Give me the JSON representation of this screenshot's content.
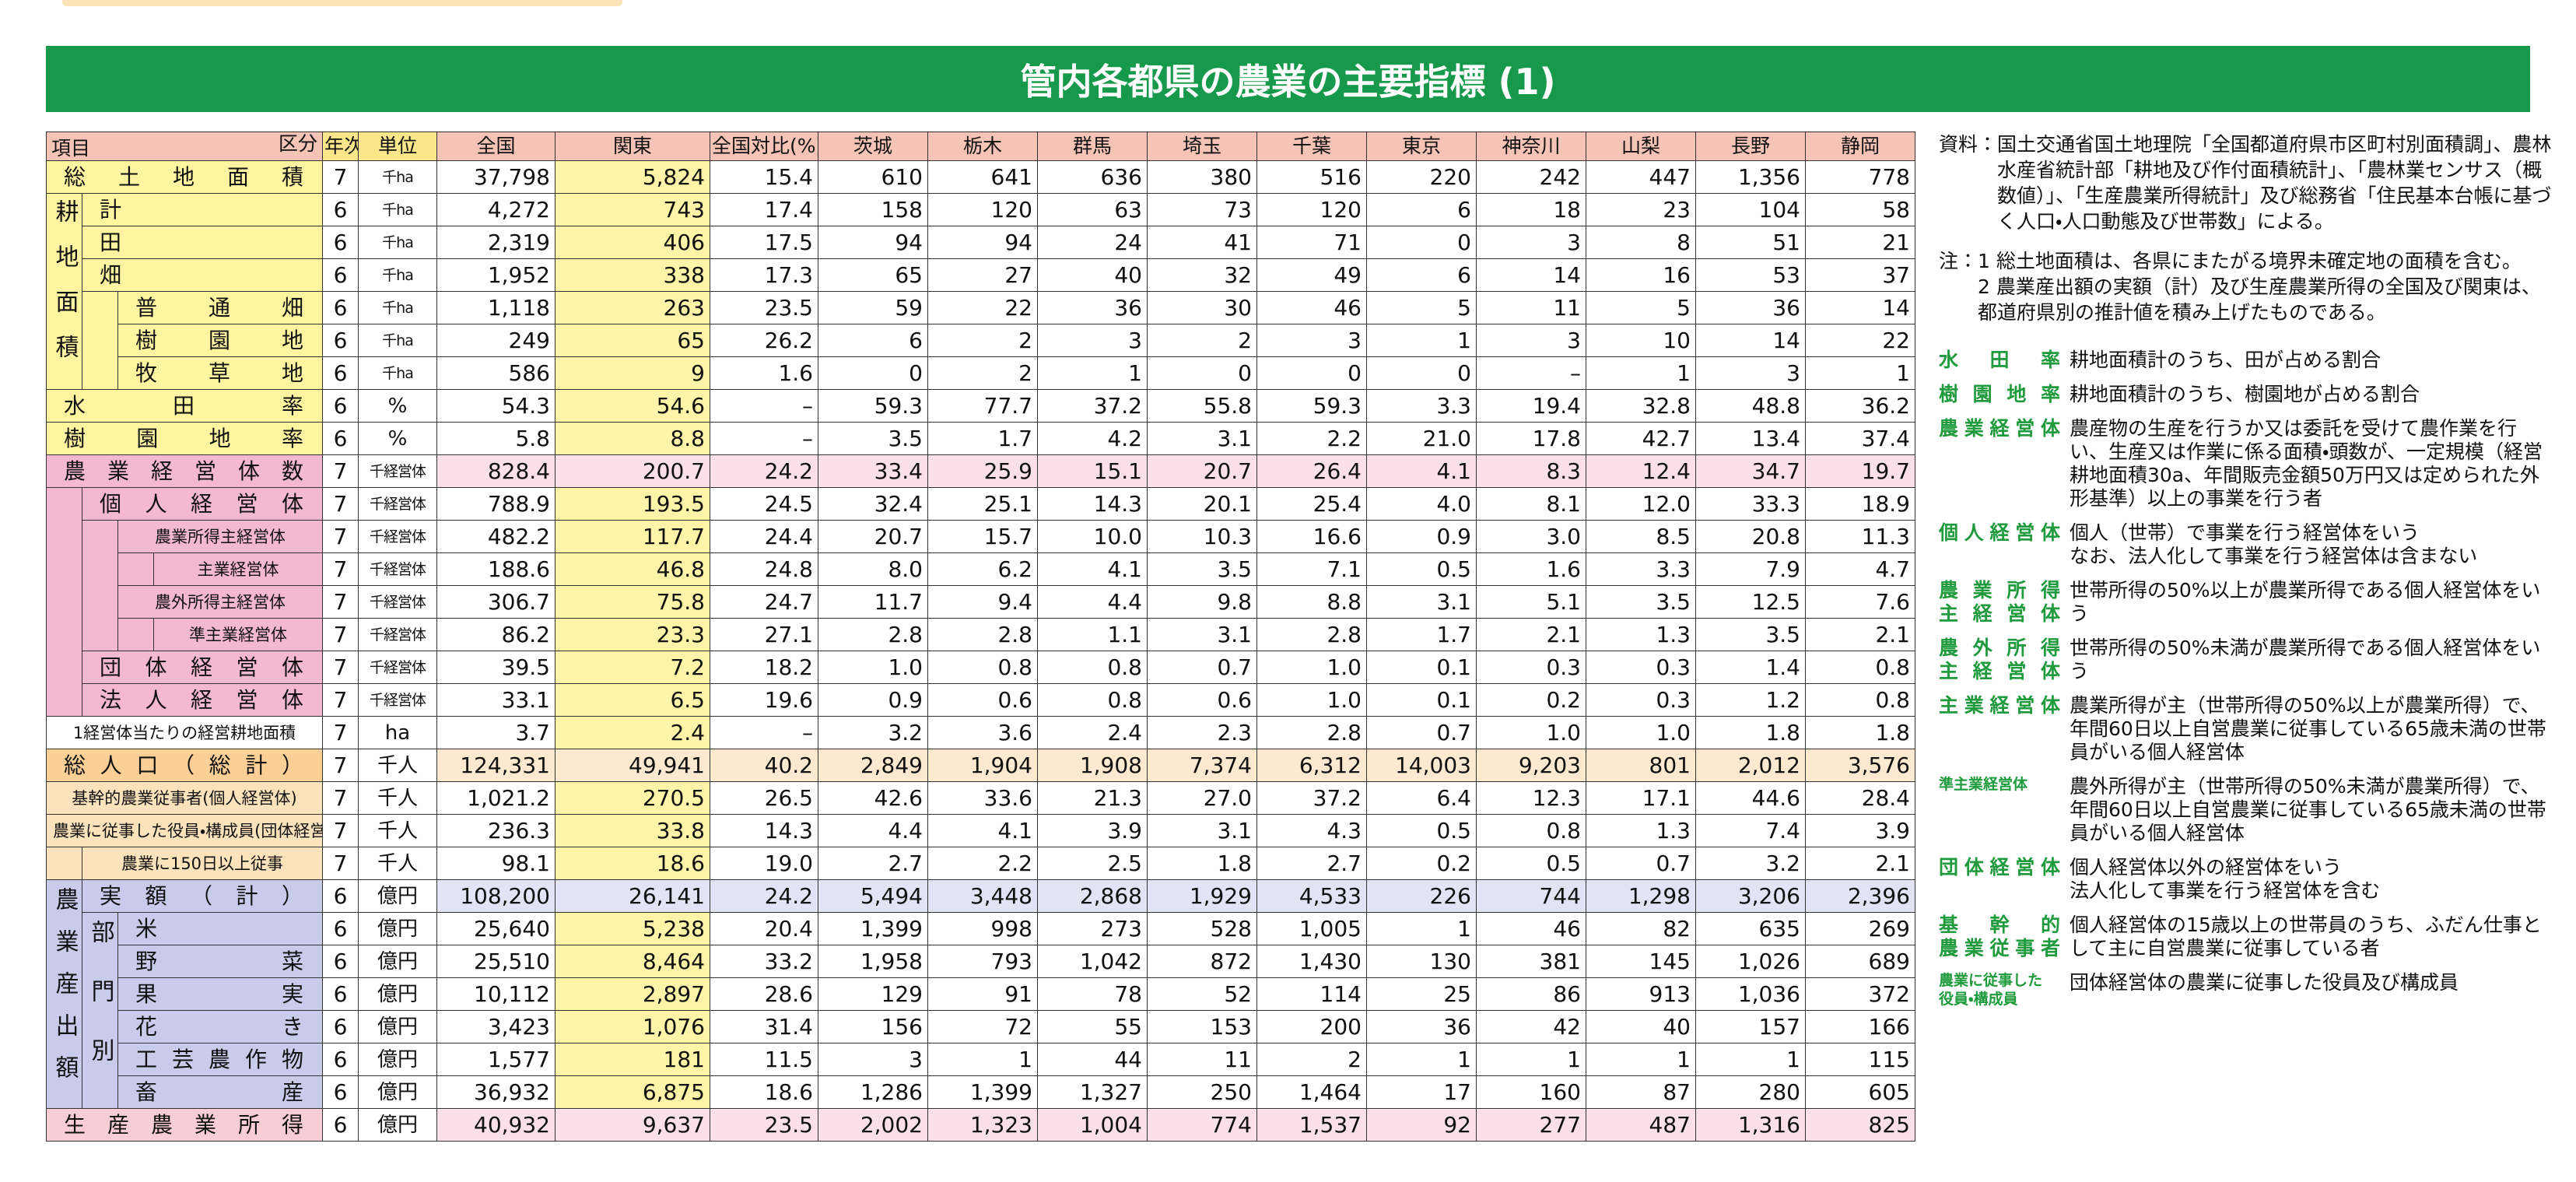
{
  "title": "管内各都県の農業の主要指標 (1)",
  "table": {
    "corner": {
      "top": "区分",
      "bottom": "項目"
    },
    "columns": [
      "年次",
      "単位",
      "全国",
      "関東",
      "全国対比(%)",
      "茨城",
      "栃木",
      "群馬",
      "埼玉",
      "千葉",
      "東京",
      "神奈川",
      "山梨",
      "長野",
      "静岡"
    ],
    "groups": {
      "farmland": "耕地面積",
      "output": "農業産出額",
      "sector": "部門別"
    },
    "rows": [
      {
        "label": "総土地面積",
        "year": 7,
        "unit": "千ha",
        "values": [
          "37,798",
          "5,824",
          "15.4",
          "610",
          "641",
          "636",
          "380",
          "516",
          "220",
          "242",
          "447",
          "1,356",
          "778"
        ]
      },
      {
        "label": "計",
        "year": 6,
        "unit": "千ha",
        "values": [
          "4,272",
          "743",
          "17.4",
          "158",
          "120",
          "63",
          "73",
          "120",
          "6",
          "18",
          "23",
          "104",
          "58"
        ]
      },
      {
        "label": "田",
        "year": 6,
        "unit": "千ha",
        "values": [
          "2,319",
          "406",
          "17.5",
          "94",
          "94",
          "24",
          "41",
          "71",
          "0",
          "3",
          "8",
          "51",
          "21"
        ]
      },
      {
        "label": "畑",
        "year": 6,
        "unit": "千ha",
        "values": [
          "1,952",
          "338",
          "17.3",
          "65",
          "27",
          "40",
          "32",
          "49",
          "6",
          "14",
          "16",
          "53",
          "37"
        ]
      },
      {
        "label": "普通畑",
        "year": 6,
        "unit": "千ha",
        "values": [
          "1,118",
          "263",
          "23.5",
          "59",
          "22",
          "36",
          "30",
          "46",
          "5",
          "11",
          "5",
          "36",
          "14"
        ]
      },
      {
        "label": "樹園地",
        "year": 6,
        "unit": "千ha",
        "values": [
          "249",
          "65",
          "26.2",
          "6",
          "2",
          "3",
          "2",
          "3",
          "1",
          "3",
          "10",
          "14",
          "22"
        ]
      },
      {
        "label": "牧草地",
        "year": 6,
        "unit": "千ha",
        "values": [
          "586",
          "9",
          "1.6",
          "0",
          "2",
          "1",
          "0",
          "0",
          "0",
          "–",
          "1",
          "3",
          "1"
        ]
      },
      {
        "label": "水田率",
        "year": 6,
        "unit": "%",
        "values": [
          "54.3",
          "54.6",
          "–",
          "59.3",
          "77.7",
          "37.2",
          "55.8",
          "59.3",
          "3.3",
          "19.4",
          "32.8",
          "48.8",
          "36.2"
        ]
      },
      {
        "label": "樹園地率",
        "year": 6,
        "unit": "%",
        "values": [
          "5.8",
          "8.8",
          "–",
          "3.5",
          "1.7",
          "4.2",
          "3.1",
          "2.2",
          "21.0",
          "17.8",
          "42.7",
          "13.4",
          "37.4"
        ]
      },
      {
        "label": "農業経営体数",
        "year": 7,
        "unit": "千経営体",
        "values": [
          "828.4",
          "200.7",
          "24.2",
          "33.4",
          "25.9",
          "15.1",
          "20.7",
          "26.4",
          "4.1",
          "8.3",
          "12.4",
          "34.7",
          "19.7"
        ]
      },
      {
        "label": "個人経営体",
        "year": 7,
        "unit": "千経営体",
        "values": [
          "788.9",
          "193.5",
          "24.5",
          "32.4",
          "25.1",
          "14.3",
          "20.1",
          "25.4",
          "4.0",
          "8.1",
          "12.0",
          "33.3",
          "18.9"
        ]
      },
      {
        "label": "農業所得主経営体",
        "year": 7,
        "unit": "千経営体",
        "values": [
          "482.2",
          "117.7",
          "24.4",
          "20.7",
          "15.7",
          "10.0",
          "10.3",
          "16.6",
          "0.9",
          "3.0",
          "8.5",
          "20.8",
          "11.3"
        ]
      },
      {
        "label": "主業経営体",
        "year": 7,
        "unit": "千経営体",
        "values": [
          "188.6",
          "46.8",
          "24.8",
          "8.0",
          "6.2",
          "4.1",
          "3.5",
          "7.1",
          "0.5",
          "1.6",
          "3.3",
          "7.9",
          "4.7"
        ]
      },
      {
        "label": "農外所得主経営体",
        "year": 7,
        "unit": "千経営体",
        "values": [
          "306.7",
          "75.8",
          "24.7",
          "11.7",
          "9.4",
          "4.4",
          "9.8",
          "8.8",
          "3.1",
          "5.1",
          "3.5",
          "12.5",
          "7.6"
        ]
      },
      {
        "label": "準主業経営体",
        "year": 7,
        "unit": "千経営体",
        "values": [
          "86.2",
          "23.3",
          "27.1",
          "2.8",
          "2.8",
          "1.1",
          "3.1",
          "2.8",
          "1.7",
          "2.1",
          "1.3",
          "3.5",
          "2.1"
        ]
      },
      {
        "label": "団体経営体",
        "year": 7,
        "unit": "千経営体",
        "values": [
          "39.5",
          "7.2",
          "18.2",
          "1.0",
          "0.8",
          "0.8",
          "0.7",
          "1.0",
          "0.1",
          "0.3",
          "0.3",
          "1.4",
          "0.8"
        ]
      },
      {
        "label": "法人経営体",
        "year": 7,
        "unit": "千経営体",
        "values": [
          "33.1",
          "6.5",
          "19.6",
          "0.9",
          "0.6",
          "0.8",
          "0.6",
          "1.0",
          "0.1",
          "0.2",
          "0.3",
          "1.2",
          "0.8"
        ]
      },
      {
        "label": "1経営体当たりの経営耕地面積",
        "year": 7,
        "unit": "ha",
        "values": [
          "3.7",
          "2.4",
          "–",
          "3.2",
          "3.6",
          "2.4",
          "2.3",
          "2.8",
          "0.7",
          "1.0",
          "1.0",
          "1.8",
          "1.8"
        ]
      },
      {
        "label": "総人口（総計）",
        "year": 7,
        "unit": "千人",
        "values": [
          "124,331",
          "49,941",
          "40.2",
          "2,849",
          "1,904",
          "1,908",
          "7,374",
          "6,312",
          "14,003",
          "9,203",
          "801",
          "2,012",
          "3,576"
        ]
      },
      {
        "label": "基幹的農業従事者(個人経営体)",
        "year": 7,
        "unit": "千人",
        "values": [
          "1,021.2",
          "270.5",
          "26.5",
          "42.6",
          "33.6",
          "21.3",
          "27.0",
          "37.2",
          "6.4",
          "12.3",
          "17.1",
          "44.6",
          "28.4"
        ]
      },
      {
        "label": "農業に従事した役員・構成員(団体経営体)",
        "year": 7,
        "unit": "千人",
        "values": [
          "236.3",
          "33.8",
          "14.3",
          "4.4",
          "4.1",
          "3.9",
          "3.1",
          "4.3",
          "0.5",
          "0.8",
          "1.3",
          "7.4",
          "3.9"
        ]
      },
      {
        "label": "農業に150日以上従事",
        "year": 7,
        "unit": "千人",
        "values": [
          "98.1",
          "18.6",
          "19.0",
          "2.7",
          "2.2",
          "2.5",
          "1.8",
          "2.7",
          "0.2",
          "0.5",
          "0.7",
          "3.2",
          "2.1"
        ]
      },
      {
        "label": "実額（計）",
        "year": 6,
        "unit": "億円",
        "values": [
          "108,200",
          "26,141",
          "24.2",
          "5,494",
          "3,448",
          "2,868",
          "1,929",
          "4,533",
          "226",
          "744",
          "1,298",
          "3,206",
          "2,396"
        ]
      },
      {
        "label": "米",
        "year": 6,
        "unit": "億円",
        "values": [
          "25,640",
          "5,238",
          "20.4",
          "1,399",
          "998",
          "273",
          "528",
          "1,005",
          "1",
          "46",
          "82",
          "635",
          "269"
        ]
      },
      {
        "label": "野菜",
        "year": 6,
        "unit": "億円",
        "values": [
          "25,510",
          "8,464",
          "33.2",
          "1,958",
          "793",
          "1,042",
          "872",
          "1,430",
          "130",
          "381",
          "145",
          "1,026",
          "689"
        ]
      },
      {
        "label": "果実",
        "year": 6,
        "unit": "億円",
        "values": [
          "10,112",
          "2,897",
          "28.6",
          "129",
          "91",
          "78",
          "52",
          "114",
          "25",
          "86",
          "913",
          "1,036",
          "372"
        ]
      },
      {
        "label": "花き",
        "year": 6,
        "unit": "億円",
        "values": [
          "3,423",
          "1,076",
          "31.4",
          "156",
          "72",
          "55",
          "153",
          "200",
          "36",
          "42",
          "40",
          "157",
          "166"
        ]
      },
      {
        "label": "工芸農作物",
        "year": 6,
        "unit": "億円",
        "values": [
          "1,577",
          "181",
          "11.5",
          "3",
          "1",
          "44",
          "11",
          "2",
          "1",
          "1",
          "1",
          "1",
          "115"
        ]
      },
      {
        "label": "畜産",
        "year": 6,
        "unit": "億円",
        "values": [
          "36,932",
          "6,875",
          "18.6",
          "1,286",
          "1,399",
          "1,327",
          "250",
          "1,464",
          "17",
          "160",
          "87",
          "280",
          "605"
        ]
      },
      {
        "label": "生産農業所得",
        "year": 6,
        "unit": "億円",
        "values": [
          "40,932",
          "9,637",
          "23.5",
          "2,002",
          "1,323",
          "1,004",
          "774",
          "1,537",
          "92",
          "277",
          "487",
          "1,316",
          "825"
        ]
      }
    ]
  },
  "source": {
    "label": "資料：",
    "text": "国土交通省国土地理院「全国都道府県市区町村別面積調」、農林水産省統計部「耕地及び作付面積統計」、「農林業センサス（概数値）」、「生産農業所得統計」及び総務省「住民基本台帳に基づく人口・人口動態及び世帯数」による。"
  },
  "notes": {
    "label": "注：",
    "items": [
      "1 総土地面積は、各県にまたがる境界未確定地の面積を含む。",
      "2 農業産出額の実額（計）及び生産農業所得の全国及び関東は、都道府県別の推計値を積み上げたものである。"
    ]
  },
  "definitions": [
    {
      "term": [
        "水田率"
      ],
      "text": [
        "耕地面積計のうち、田が占める割合"
      ]
    },
    {
      "term": [
        "樹園地率"
      ],
      "text": [
        "耕地面積計のうち、樹園地が占める割合"
      ]
    },
    {
      "term": [
        "農業経営体"
      ],
      "text": [
        "農産物の生産を行うか又は委託を受けて農作業を行い、生産又は作業に係る面積・頭数が、一定規模（経営耕地面積30a、年間販売金額50万円又は定められた外形基準）以上の事業を行う者"
      ]
    },
    {
      "term": [
        "個人経営体"
      ],
      "text": [
        "個人（世帯）で事業を行う経営体をいう",
        "なお、法人化して事業を行う経営体は含まない"
      ]
    },
    {
      "term": [
        "農業所得",
        "主経営体"
      ],
      "text": [
        "世帯所得の50%以上が農業所得である個人経営体をいう"
      ]
    },
    {
      "term": [
        "農外所得",
        "主経営体"
      ],
      "text": [
        "世帯所得の50%未満が農業所得である個人経営体をいう"
      ]
    },
    {
      "term": [
        "主業経営体"
      ],
      "text": [
        "農業所得が主（世帯所得の50%以上が農業所得）で、年間60日以上自営農業に従事している65歳未満の世帯員がいる個人経営体"
      ]
    },
    {
      "term": [
        "準主業経営体"
      ],
      "text": [
        "農外所得が主（世帯所得の50%未満が農業所得）で、年間60日以上自営農業に従事している65歳未満の世帯員がいる個人経営体"
      ]
    },
    {
      "term": [
        "団体経営体"
      ],
      "text": [
        "個人経営体以外の経営体をいう",
        "法人化して事業を行う経営体を含む"
      ]
    },
    {
      "term": [
        "基幹的",
        "農業従事者"
      ],
      "text": [
        "個人経営体の15歳以上の世帯員のうち、ふだん仕事として主に自営農業に従事している者"
      ]
    },
    {
      "term": [
        "農業に従事した",
        "役員・構成員"
      ],
      "text": [
        "団体経営体の農業に従事した役員及び構成員"
      ]
    }
  ]
}
